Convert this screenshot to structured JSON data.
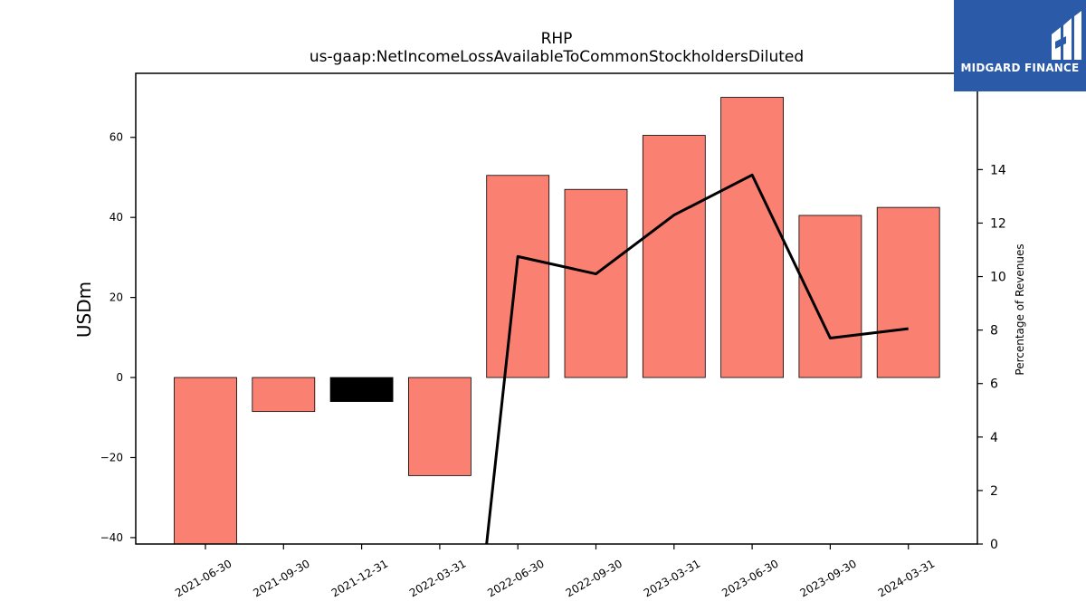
{
  "logo": {
    "text": "MIDGARD FINANCE",
    "bg_color": "#2a5aa8"
  },
  "chart_data": {
    "type": "bar",
    "title": "RHP",
    "subtitle": "us-gaap:NetIncomeLossAvailableToCommonStockholdersDiluted",
    "ylabel": "USDm",
    "y2label": "Percentage of Revenues",
    "categories": [
      "2021-06-30",
      "2021-09-30",
      "2021-12-31",
      "2022-03-31",
      "2022-06-30",
      "2022-09-30",
      "2023-03-31",
      "2023-06-30",
      "2023-09-30",
      "2024-03-31"
    ],
    "series": [
      {
        "type": "bar",
        "values": [
          -42,
          -8.5,
          -6,
          -24.5,
          50.5,
          47,
          60.5,
          70,
          40.5,
          42.5
        ],
        "colors": [
          "#fa8072",
          "#fa8072",
          "#000000",
          "#fa8072",
          "#fa8072",
          "#fa8072",
          "#fa8072",
          "#fa8072",
          "#fa8072",
          "#fa8072"
        ]
      },
      {
        "type": "line",
        "axis": "right",
        "values": [
          null,
          null,
          null,
          null,
          10.75,
          10.1,
          12.3,
          13.8,
          7.7,
          8.05
        ],
        "color": "#000000"
      }
    ],
    "ylim": [
      -41.6,
      76
    ],
    "y2lim": [
      0,
      17.6
    ],
    "yticks": [
      -40,
      -20,
      0,
      20,
      40,
      60
    ],
    "y2ticks": [
      0,
      2,
      4,
      6,
      8,
      10,
      12,
      14
    ],
    "line_segment_from_below": {
      "from_category_index": 3.6,
      "from_value": 0
    }
  }
}
